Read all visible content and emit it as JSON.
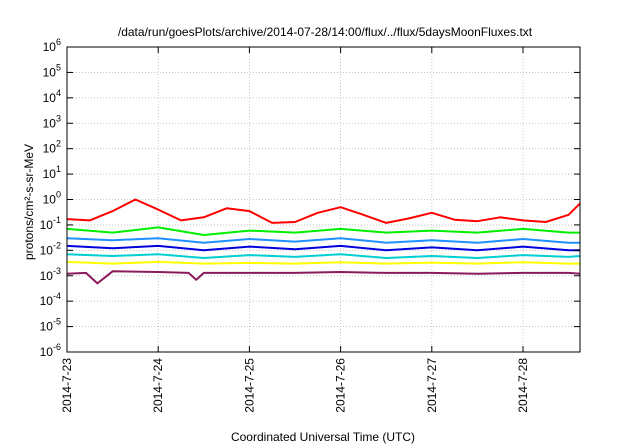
{
  "chart_data": {
    "type": "line",
    "title": "/data/run/goesPlots/archive/2014-07-28/14:00/flux/../flux/5daysMoonFluxes.txt",
    "xlabel": "Coordinated Universal Time (UTC)",
    "ylabel": "protons/cm²-s-sr-MeV",
    "yscale": "log",
    "ylim": [
      1e-06,
      1000000.0
    ],
    "xlim": [
      "2014-07-23",
      "2014-07-28T15:00"
    ],
    "x_ticks": [
      "2014-7-23",
      "2014-7-24",
      "2014-7-25",
      "2014-7-26",
      "2014-7-27",
      "2014-7-28"
    ],
    "y_ticks": [
      {
        "base": "10",
        "exp": "-6"
      },
      {
        "base": "10",
        "exp": "-5"
      },
      {
        "base": "10",
        "exp": "-4"
      },
      {
        "base": "10",
        "exp": "-3"
      },
      {
        "base": "10",
        "exp": "-2"
      },
      {
        "base": "10",
        "exp": "-1"
      },
      {
        "base": "10",
        "exp": "0"
      },
      {
        "base": "10",
        "exp": "1"
      },
      {
        "base": "10",
        "exp": "2"
      },
      {
        "base": "10",
        "exp": "3"
      },
      {
        "base": "10",
        "exp": "4"
      },
      {
        "base": "10",
        "exp": "5"
      },
      {
        "base": "10",
        "exp": "6"
      }
    ],
    "grid": true,
    "legend": "none",
    "series": [
      {
        "color": "#ff0000",
        "x": [
          "2014-07-23T00:00",
          "2014-07-23T06:00",
          "2014-07-23T12:00",
          "2014-07-23T18:00",
          "2014-07-24T00:00",
          "2014-07-24T06:00",
          "2014-07-24T12:00",
          "2014-07-24T18:00",
          "2014-07-25T00:00",
          "2014-07-25T06:00",
          "2014-07-25T12:00",
          "2014-07-25T18:00",
          "2014-07-26T00:00",
          "2014-07-26T06:00",
          "2014-07-26T12:00",
          "2014-07-26T18:00",
          "2014-07-27T00:00",
          "2014-07-27T06:00",
          "2014-07-27T12:00",
          "2014-07-27T18:00",
          "2014-07-28T00:00",
          "2014-07-28T06:00",
          "2014-07-28T12:00",
          "2014-07-28T15:00"
        ],
        "y": [
          0.17,
          0.15,
          0.35,
          1.0,
          0.4,
          0.15,
          0.2,
          0.45,
          0.35,
          0.12,
          0.13,
          0.3,
          0.5,
          0.25,
          0.12,
          0.18,
          0.3,
          0.16,
          0.14,
          0.2,
          0.15,
          0.13,
          0.25,
          0.7
        ]
      },
      {
        "color": "#00ee00",
        "x": [
          "2014-07-23T00:00",
          "2014-07-23T12:00",
          "2014-07-24T00:00",
          "2014-07-24T12:00",
          "2014-07-25T00:00",
          "2014-07-25T12:00",
          "2014-07-26T00:00",
          "2014-07-26T12:00",
          "2014-07-27T00:00",
          "2014-07-27T12:00",
          "2014-07-28T00:00",
          "2014-07-28T12:00",
          "2014-07-28T15:00"
        ],
        "y": [
          0.07,
          0.05,
          0.08,
          0.04,
          0.06,
          0.05,
          0.07,
          0.05,
          0.06,
          0.05,
          0.07,
          0.05,
          0.05
        ]
      },
      {
        "color": "#1e90ff",
        "x": [
          "2014-07-23T00:00",
          "2014-07-23T12:00",
          "2014-07-24T00:00",
          "2014-07-24T12:00",
          "2014-07-25T00:00",
          "2014-07-25T12:00",
          "2014-07-26T00:00",
          "2014-07-26T12:00",
          "2014-07-27T00:00",
          "2014-07-27T12:00",
          "2014-07-28T00:00",
          "2014-07-28T12:00",
          "2014-07-28T15:00"
        ],
        "y": [
          0.03,
          0.025,
          0.03,
          0.02,
          0.028,
          0.022,
          0.03,
          0.02,
          0.025,
          0.02,
          0.028,
          0.02,
          0.02
        ]
      },
      {
        "color": "#0000dd",
        "x": [
          "2014-07-23T00:00",
          "2014-07-23T12:00",
          "2014-07-24T00:00",
          "2014-07-24T12:00",
          "2014-07-25T00:00",
          "2014-07-25T12:00",
          "2014-07-26T00:00",
          "2014-07-26T12:00",
          "2014-07-27T00:00",
          "2014-07-27T12:00",
          "2014-07-28T00:00",
          "2014-07-28T12:00",
          "2014-07-28T15:00"
        ],
        "y": [
          0.015,
          0.012,
          0.015,
          0.01,
          0.014,
          0.011,
          0.015,
          0.01,
          0.013,
          0.01,
          0.014,
          0.01,
          0.01
        ]
      },
      {
        "color": "#00ced1",
        "x": [
          "2014-07-23T00:00",
          "2014-07-23T12:00",
          "2014-07-24T00:00",
          "2014-07-24T12:00",
          "2014-07-25T00:00",
          "2014-07-25T12:00",
          "2014-07-26T00:00",
          "2014-07-26T12:00",
          "2014-07-27T00:00",
          "2014-07-27T12:00",
          "2014-07-28T00:00",
          "2014-07-28T12:00",
          "2014-07-28T15:00"
        ],
        "y": [
          0.007,
          0.006,
          0.007,
          0.005,
          0.0065,
          0.0055,
          0.007,
          0.005,
          0.006,
          0.005,
          0.0065,
          0.0055,
          0.006
        ]
      },
      {
        "color": "#ffff00",
        "x": [
          "2014-07-23T00:00",
          "2014-07-23T12:00",
          "2014-07-24T00:00",
          "2014-07-24T12:00",
          "2014-07-25T00:00",
          "2014-07-25T12:00",
          "2014-07-26T00:00",
          "2014-07-26T12:00",
          "2014-07-27T00:00",
          "2014-07-27T12:00",
          "2014-07-28T00:00",
          "2014-07-28T12:00",
          "2014-07-28T15:00"
        ],
        "y": [
          0.0035,
          0.003,
          0.0035,
          0.003,
          0.0032,
          0.003,
          0.0034,
          0.003,
          0.0033,
          0.003,
          0.0034,
          0.003,
          0.003
        ]
      },
      {
        "color": "#8b1a5a",
        "x": [
          "2014-07-23T00:00",
          "2014-07-23T05:00",
          "2014-07-23T08:00",
          "2014-07-23T12:00",
          "2014-07-24T00:00",
          "2014-07-24T08:00",
          "2014-07-24T10:00",
          "2014-07-24T12:00",
          "2014-07-25T00:00",
          "2014-07-25T12:00",
          "2014-07-26T00:00",
          "2014-07-26T12:00",
          "2014-07-27T00:00",
          "2014-07-27T12:00",
          "2014-07-28T00:00",
          "2014-07-28T12:00",
          "2014-07-28T15:00"
        ],
        "y": [
          0.0012,
          0.0013,
          0.0005,
          0.0015,
          0.0014,
          0.0013,
          0.0007,
          0.0013,
          0.0013,
          0.0013,
          0.0014,
          0.0013,
          0.0013,
          0.0012,
          0.0013,
          0.0013,
          0.0012
        ]
      }
    ]
  }
}
